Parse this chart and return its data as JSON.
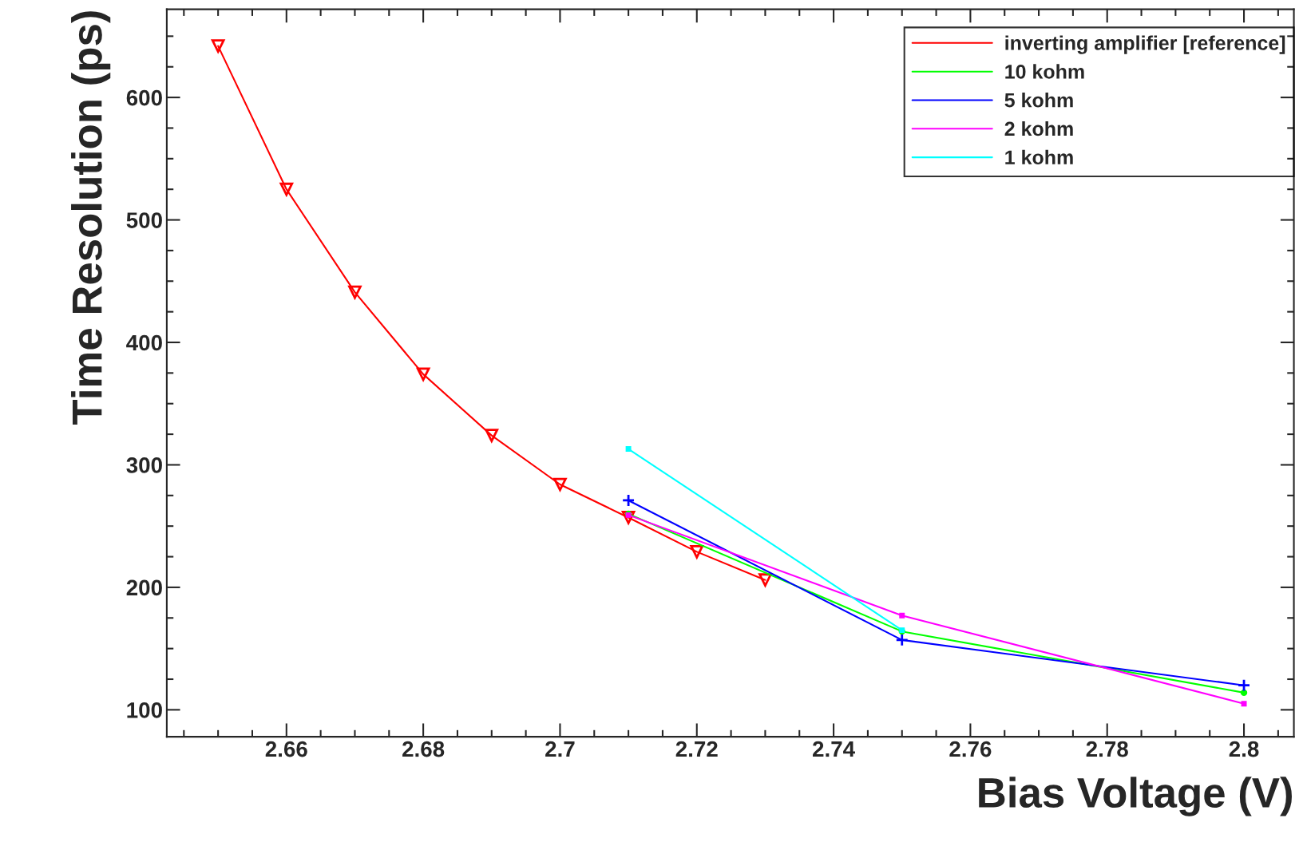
{
  "chart_data": {
    "type": "line",
    "xlabel": "Bias Voltage (V)",
    "ylabel": "Time Resolution (ps)",
    "xlim": [
      2.6425,
      2.8073
    ],
    "ylim": [
      78,
      672
    ],
    "xticks": [
      2.66,
      2.68,
      2.7,
      2.72,
      2.74,
      2.76,
      2.78,
      2.8
    ],
    "yticks": [
      100,
      200,
      300,
      400,
      500,
      600
    ],
    "grid": false,
    "legend": "top right",
    "series": [
      {
        "name": "inverting amplifier [reference]",
        "color": "#ff0000",
        "marker": "triangle",
        "x": [
          2.65,
          2.66,
          2.67,
          2.68,
          2.69,
          2.7,
          2.71,
          2.72,
          2.73
        ],
        "values": [
          642,
          525,
          441,
          374,
          324,
          284,
          257,
          229,
          206
        ]
      },
      {
        "name": "10 kohm",
        "color": "#00ff00",
        "marker": "circle",
        "x": [
          2.71,
          2.75,
          2.8
        ],
        "values": [
          260,
          164,
          114
        ]
      },
      {
        "name": "5 kohm",
        "color": "#0000ff",
        "marker": "cross",
        "x": [
          2.71,
          2.75,
          2.8
        ],
        "values": [
          271,
          157,
          120
        ]
      },
      {
        "name": "2 kohm",
        "color": "#ff00ff",
        "marker": "square",
        "x": [
          2.71,
          2.75,
          2.8
        ],
        "values": [
          259,
          177,
          105
        ]
      },
      {
        "name": "1 kohm",
        "color": "#00ffff",
        "marker": "square",
        "x": [
          2.71,
          2.75
        ],
        "values": [
          313,
          165
        ]
      }
    ]
  }
}
